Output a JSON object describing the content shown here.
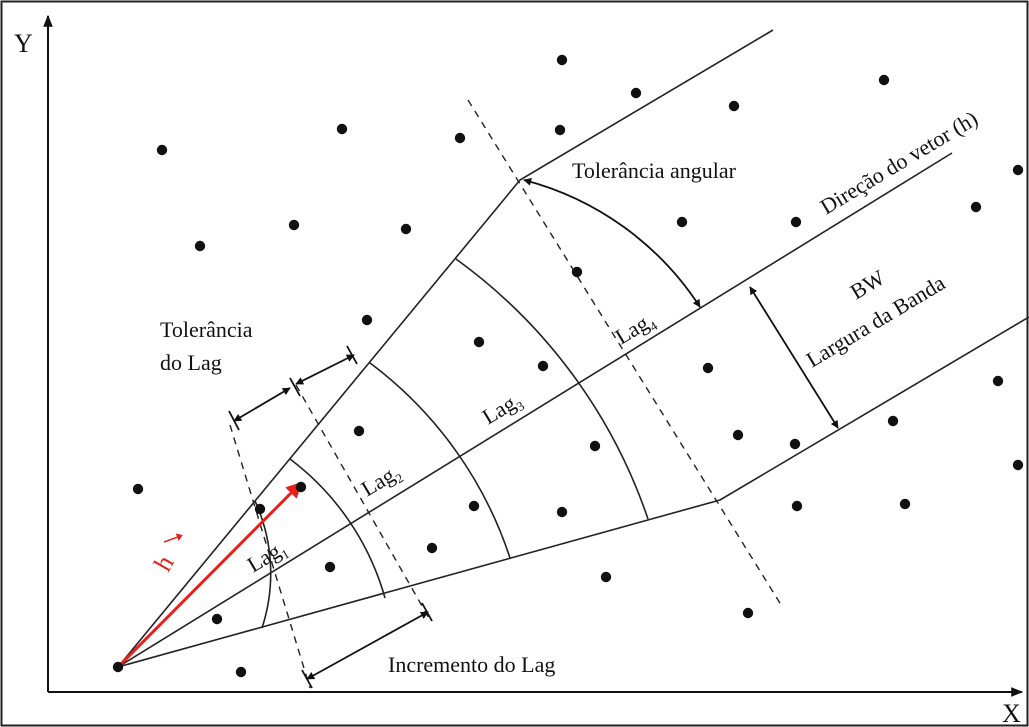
{
  "axes": {
    "x_label": "X",
    "y_label": "Y"
  },
  "labels": {
    "tolerancia_angular": "Tolerância angular",
    "direcao_vetor": "Direção do vetor (h)",
    "bw": "BW",
    "largura_banda": "Largura da Banda",
    "tolerancia_lag_line1": "Tolerância",
    "tolerancia_lag_line2": "do Lag",
    "incremento_lag": "Incremento do  Lag",
    "h_vector": "h"
  },
  "lags": [
    {
      "base": "Lag",
      "sub": "1"
    },
    {
      "base": "Lag",
      "sub": "2"
    },
    {
      "base": "Lag",
      "sub": "3"
    },
    {
      "base": "Lag",
      "sub": "4"
    }
  ],
  "colors": {
    "vector": "#e8201a",
    "ink": "#111111",
    "frame": "#222222"
  }
}
